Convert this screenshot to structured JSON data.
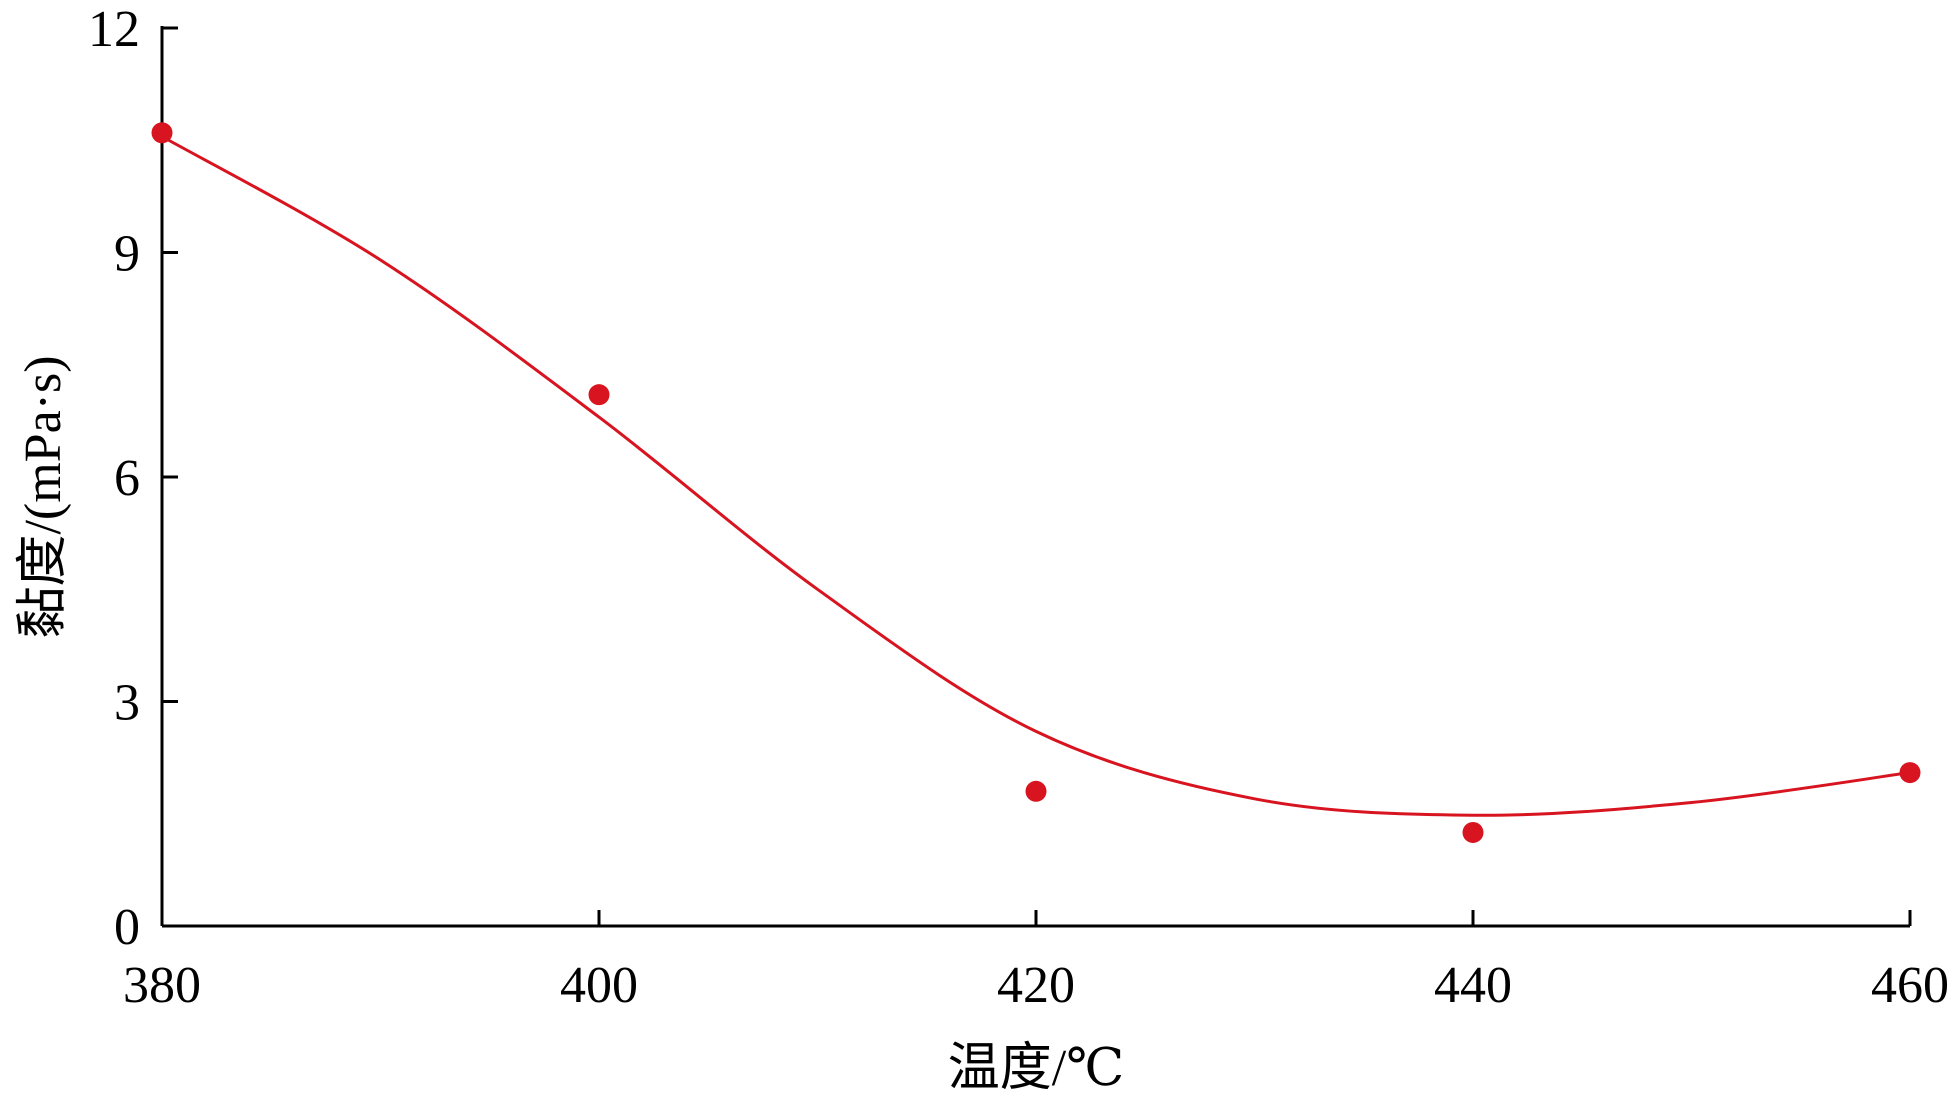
{
  "chart_data": {
    "type": "scatter",
    "xlabel": "温度/℃",
    "ylabel": "黏度/(mPa·s)",
    "xlim": [
      380,
      460
    ],
    "ylim": [
      0,
      12
    ],
    "x_ticks": [
      380,
      400,
      420,
      440,
      460
    ],
    "y_ticks": [
      0,
      3,
      6,
      9,
      12
    ],
    "grid": false,
    "series": [
      {
        "points": [
          {
            "x": 380,
            "y": 10.6
          },
          {
            "x": 400,
            "y": 7.1
          },
          {
            "x": 420,
            "y": 1.8
          },
          {
            "x": 440,
            "y": 1.25
          },
          {
            "x": 460,
            "y": 2.05
          }
        ],
        "fit_curve": [
          {
            "x": 380,
            "y": 10.55
          },
          {
            "x": 390,
            "y": 8.9
          },
          {
            "x": 400,
            "y": 6.8
          },
          {
            "x": 410,
            "y": 4.5
          },
          {
            "x": 420,
            "y": 2.6
          },
          {
            "x": 430,
            "y": 1.7
          },
          {
            "x": 440,
            "y": 1.48
          },
          {
            "x": 450,
            "y": 1.65
          },
          {
            "x": 460,
            "y": 2.05
          }
        ]
      }
    ],
    "colors": {
      "series": "#d7141f",
      "axis": "#000000"
    }
  }
}
